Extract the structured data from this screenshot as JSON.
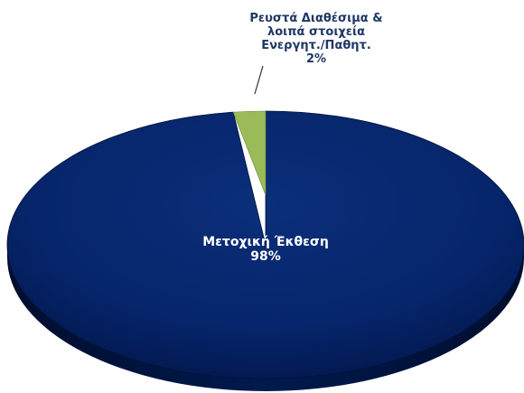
{
  "chart_data": {
    "type": "pie",
    "style": "3d-tilted",
    "title": "",
    "slices": [
      {
        "label_lines": [
          "Μετοχική Έκθεση",
          "98%"
        ],
        "value": 98,
        "color": "#002060"
      },
      {
        "label_lines": [
          "Ρευστά Διαθέσιμα &",
          "λοιπά στοιχεία",
          "Ενεργητ./Παθητ.",
          "2%"
        ],
        "value": 2,
        "color": "#9BBB59"
      }
    ],
    "colors": {
      "primary_label": "#ffffff",
      "secondary_label": "#1F3864",
      "edge_dark": "#00103a",
      "leader_line": "#333333"
    }
  }
}
